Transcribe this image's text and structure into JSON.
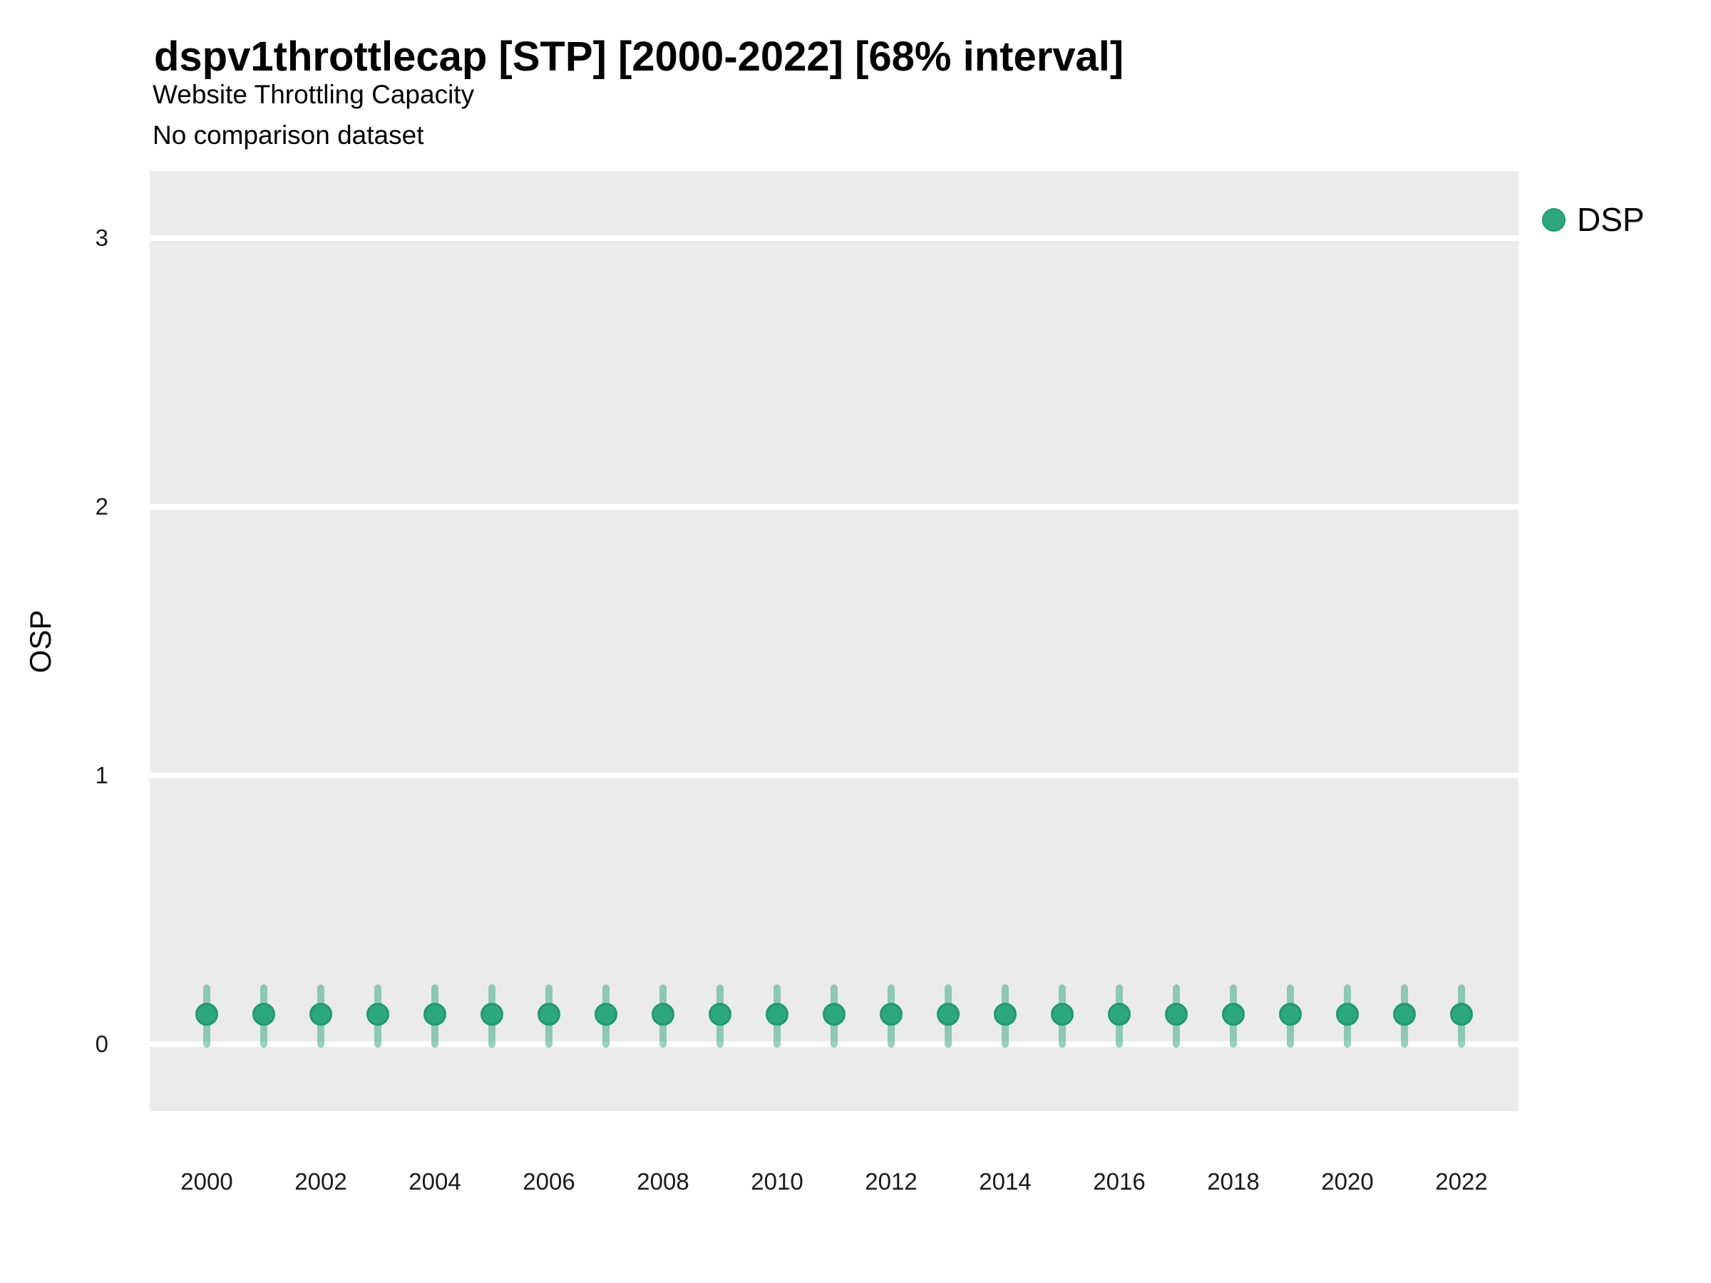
{
  "header": {
    "title": "dspv1throttlecap [STP] [2000-2022] [68% interval]",
    "subtitle": "Website Throttling Capacity",
    "note": "No comparison dataset"
  },
  "colors": {
    "point_fill": "#2BA87E",
    "point_stroke": "#1F9A70",
    "errorbar": "rgba(43,168,126,0.5)",
    "panel_background": "#EBEBEB",
    "gridline": "#FFFFFF"
  },
  "chart_data": {
    "type": "scatter",
    "title": "dspv1throttlecap [STP] [2000-2022] [68% interval]",
    "subtitle": "Website Throttling Capacity",
    "note": "No comparison dataset",
    "xlabel": "",
    "ylabel": "OSP",
    "interval_label": "68% interval",
    "grid": true,
    "legend_position": "right",
    "legend": [
      {
        "label": "DSP",
        "color": "#2BA87E"
      }
    ],
    "x": [
      2000,
      2001,
      2002,
      2003,
      2004,
      2005,
      2006,
      2007,
      2008,
      2009,
      2010,
      2011,
      2012,
      2013,
      2014,
      2015,
      2016,
      2017,
      2018,
      2019,
      2020,
      2021,
      2022
    ],
    "series": [
      {
        "name": "DSP",
        "values": [
          0.11,
          0.11,
          0.11,
          0.11,
          0.11,
          0.11,
          0.11,
          0.11,
          0.11,
          0.11,
          0.11,
          0.11,
          0.11,
          0.11,
          0.11,
          0.11,
          0.11,
          0.11,
          0.11,
          0.11,
          0.11,
          0.11,
          0.11
        ],
        "lower": [
          0.0,
          0.0,
          0.0,
          0.0,
          0.0,
          0.0,
          0.0,
          0.0,
          0.0,
          0.0,
          0.0,
          0.0,
          0.0,
          0.0,
          0.0,
          0.0,
          0.0,
          0.0,
          0.0,
          0.0,
          0.0,
          0.0,
          0.0
        ],
        "upper": [
          0.21,
          0.21,
          0.21,
          0.21,
          0.21,
          0.21,
          0.21,
          0.21,
          0.21,
          0.21,
          0.21,
          0.21,
          0.21,
          0.21,
          0.21,
          0.21,
          0.21,
          0.21,
          0.21,
          0.21,
          0.21,
          0.21,
          0.21
        ]
      }
    ],
    "xlim": [
      1999,
      2023
    ],
    "ylim": [
      -0.25,
      3.25
    ],
    "yticks": [
      0,
      1,
      2,
      3
    ],
    "xticks": [
      2000,
      2002,
      2004,
      2006,
      2008,
      2010,
      2012,
      2014,
      2016,
      2018,
      2020,
      2022
    ]
  }
}
